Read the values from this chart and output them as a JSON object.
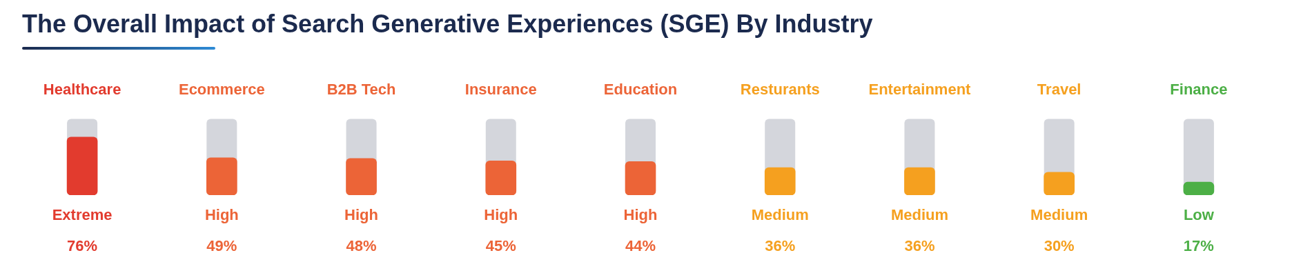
{
  "chart_data": {
    "type": "bar",
    "title": "The Overall Impact of Search Generative Experiences (SGE) By Industry",
    "categories": [
      "Healthcare",
      "Ecommerce",
      "B2B Tech",
      "Insurance",
      "Education",
      "Resturants",
      "Entertainment",
      "Travel",
      "Finance"
    ],
    "values": [
      76,
      49,
      48,
      45,
      44,
      36,
      36,
      30,
      17
    ],
    "colors": [
      "#e23b2e",
      "#ec6437",
      "#ec6437",
      "#ec6437",
      "#ec6437",
      "#f5a01f",
      "#f5a01f",
      "#f5a01f",
      "#4caf46"
    ],
    "value_labels": [
      "76%",
      "49%",
      "48%",
      "45%",
      "44%",
      "36%",
      "36%",
      "30%",
      "17%"
    ],
    "annotations": [
      "Extreme",
      "High",
      "High",
      "High",
      "High",
      "Medium",
      "Medium",
      "Medium",
      "Low"
    ],
    "ylim": [
      0,
      100
    ],
    "tick_labels": "x"
  }
}
